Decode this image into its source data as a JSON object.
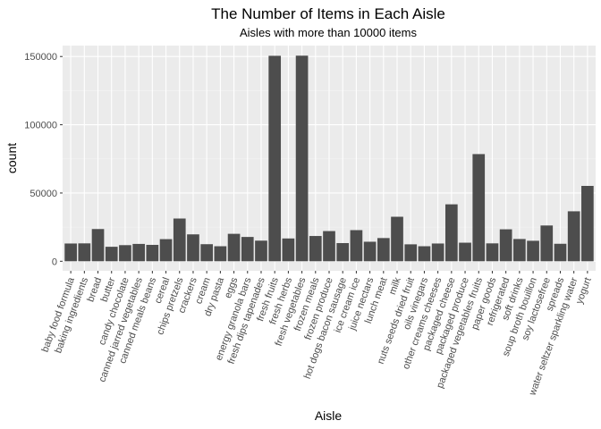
{
  "chart_data": {
    "type": "bar",
    "title": "The Number of Items in Each Aisle",
    "subtitle": "Aisles with more than 10000 items",
    "xlabel": "Aisle",
    "ylabel": "count",
    "ylim": [
      -7000,
      158000
    ],
    "yticks": [
      0,
      50000,
      100000,
      150000
    ],
    "ytick_labels": [
      "0",
      "50000",
      "100000",
      "150000"
    ],
    "grid": true,
    "colors": {
      "panel": "#ebebeb",
      "grid": "#ffffff",
      "bar": "#4d4d4d",
      "tick_text": "#4d4d4d"
    },
    "categories": [
      "baby food formula",
      "baking ingredients",
      "bread",
      "butter",
      "candy chocolate",
      "canned jarred vegetables",
      "canned meals beans",
      "cereal",
      "chips pretzels",
      "crackers",
      "cream",
      "dry pasta",
      "eggs",
      "energy granola bars",
      "fresh dips tapenades",
      "fresh fruits",
      "fresh herbs",
      "fresh vegetables",
      "frozen meals",
      "frozen produce",
      "hot dogs bacon sausage",
      "ice cream ice",
      "juice nectars",
      "lunch meat",
      "milk",
      "nuts seeds dried fruit",
      "oils vinegars",
      "other creams cheeses",
      "packaged cheese",
      "packaged produce",
      "packaged vegetables fruits",
      "paper goods",
      "refrigerated",
      "soft drinks",
      "soup broth bouillon",
      "soy lactosefree",
      "spreads",
      "water seltzer sparkling water",
      "yogurt"
    ],
    "values": [
      13000,
      13100,
      23600,
      10600,
      11800,
      12700,
      12000,
      16200,
      31300,
      19700,
      12500,
      11000,
      20100,
      17800,
      15100,
      150500,
      16700,
      150600,
      18500,
      22100,
      13300,
      22800,
      14300,
      17000,
      32600,
      12400,
      11000,
      13000,
      41700,
      13600,
      78500,
      13100,
      23400,
      16300,
      15000,
      26200,
      12800,
      36600,
      55200
    ]
  }
}
